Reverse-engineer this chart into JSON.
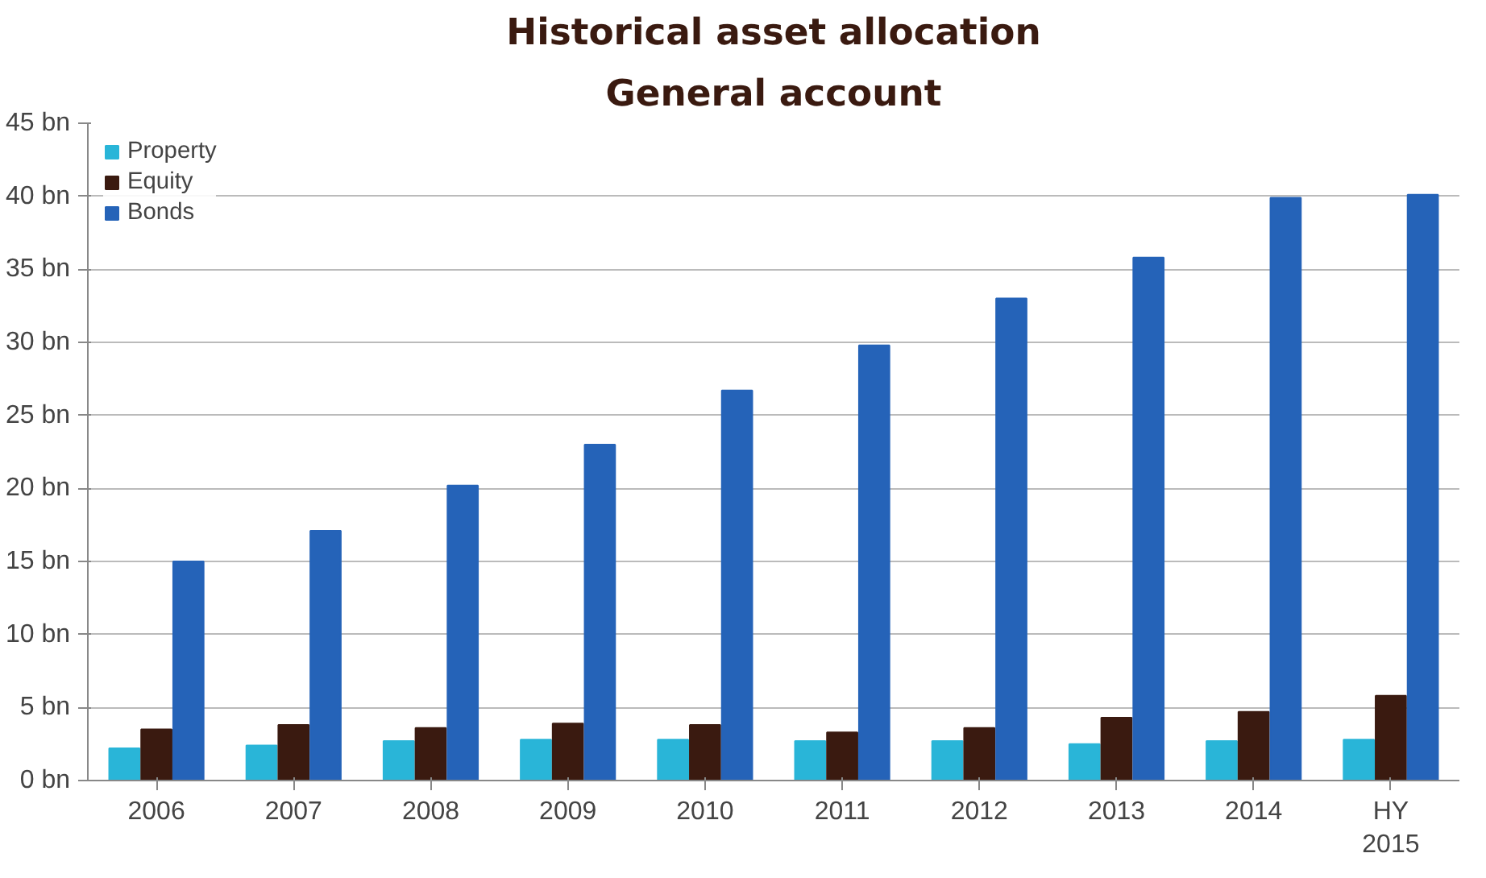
{
  "chart_data": {
    "type": "bar",
    "title": "Historical asset allocation",
    "subtitle": "General account",
    "categories": [
      "2006",
      "2007",
      "2008",
      "2009",
      "2010",
      "2011",
      "2012",
      "2013",
      "2014",
      "HY\n2015"
    ],
    "series": [
      {
        "name": "Property",
        "color": "#29b5d8",
        "values": [
          2.2,
          2.4,
          2.7,
          2.8,
          2.8,
          2.7,
          2.7,
          2.5,
          2.7,
          2.8
        ]
      },
      {
        "name": "Equity",
        "color": "#3a1a10",
        "values": [
          3.5,
          3.8,
          3.6,
          3.9,
          3.8,
          3.3,
          3.6,
          4.3,
          4.7,
          5.8
        ]
      },
      {
        "name": "Bonds",
        "color": "#2563b8",
        "values": [
          15.0,
          17.1,
          20.2,
          23.0,
          26.7,
          29.8,
          33.0,
          35.8,
          39.9,
          40.1
        ]
      }
    ],
    "ylim": [
      0,
      45
    ],
    "yticks": [
      {
        "value": 0,
        "label": "0 bn"
      },
      {
        "value": 5,
        "label": "5 bn"
      },
      {
        "value": 10,
        "label": "10 bn"
      },
      {
        "value": 15,
        "label": "15 bn"
      },
      {
        "value": 20,
        "label": "20 bn"
      },
      {
        "value": 25,
        "label": "25 bn"
      },
      {
        "value": 30,
        "label": "30 bn"
      },
      {
        "value": 35,
        "label": "35 bn"
      },
      {
        "value": 40,
        "label": "40 bn"
      },
      {
        "value": 45,
        "label": "45 bn"
      }
    ],
    "grid": "y",
    "legend": "top left"
  }
}
